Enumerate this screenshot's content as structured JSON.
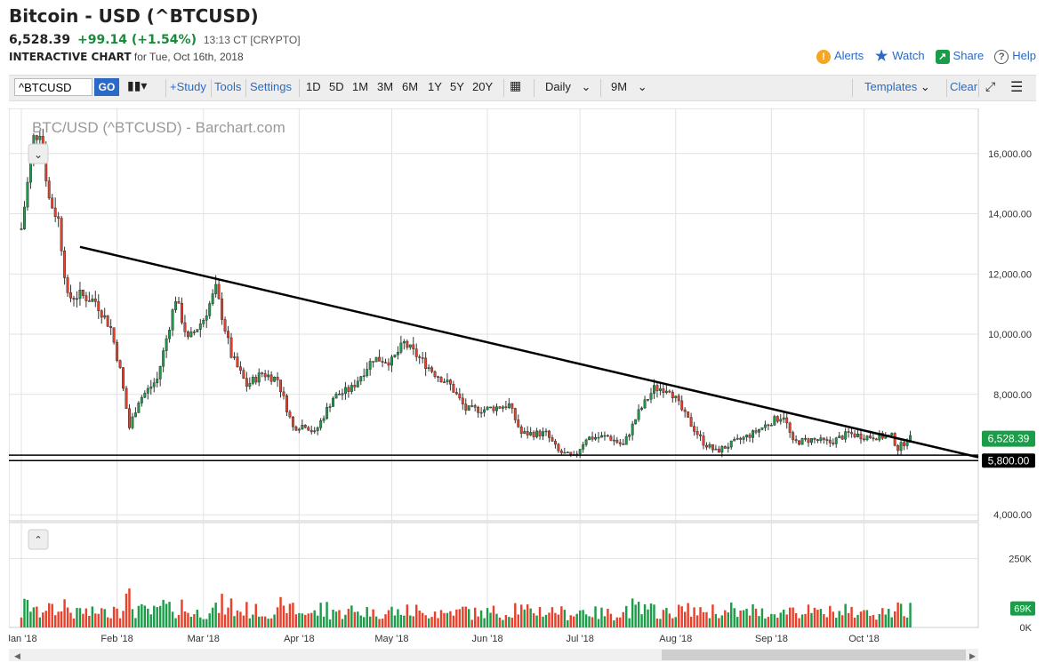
{
  "header": {
    "title": "Bitcoin - USD (^BTCUSD)",
    "price": "6,528.39",
    "change": "+99.14 (+1.54%)",
    "time": "13:13 CT [CRYPTO]",
    "interactive": "INTERACTIVE CHART",
    "for_date": "for Tue, Oct 16th, 2018"
  },
  "links": {
    "alerts": "Alerts",
    "watch": "Watch",
    "share": "Share",
    "help": "Help"
  },
  "toolbar": {
    "symbol": "^BTCUSD",
    "go": "GO",
    "study": "+Study",
    "tools": "Tools",
    "settings": "Settings",
    "ranges": [
      "1D",
      "5D",
      "1M",
      "3M",
      "6M",
      "1Y",
      "5Y",
      "20Y"
    ],
    "interval": "Daily",
    "period": "9M",
    "templates": "Templates",
    "clear": "Clear"
  },
  "colors": {
    "up": "#1a9c48",
    "down": "#e8402a",
    "accent": "#2a6ac6",
    "price_badge": "#1a9c48",
    "volume_badge": "#1a9c48"
  },
  "chart_data": {
    "type": "candlestick",
    "title": "BTC/USD (^BTCUSD) - Barchart.com",
    "months": [
      "Jan '18",
      "Feb '18",
      "Mar '18",
      "Apr '18",
      "May '18",
      "Jun '18",
      "Jul '18",
      "Aug '18",
      "Sep '18",
      "Oct '18"
    ],
    "price_ticks": [
      "16,000.00",
      "14,000.00",
      "12,000.00",
      "10,000.00",
      "8,000.00",
      "4,000.00"
    ],
    "price_tick_values": [
      16000,
      14000,
      12000,
      10000,
      8000,
      4000
    ],
    "ylim": [
      3800,
      17500
    ],
    "last_price": "6,528.39",
    "last_value": 6528.39,
    "support_label": "5,800.00",
    "support_value": 5800,
    "support2_value": 5980,
    "trendline": [
      {
        "date": "2018-01-20",
        "value": 12900
      },
      {
        "date": "2018-10-26",
        "value": 6200
      }
    ],
    "price_path": [
      {
        "date": "2018-01-01",
        "value": 13500
      },
      {
        "date": "2018-01-05",
        "value": 16500
      },
      {
        "date": "2018-01-07",
        "value": 16800
      },
      {
        "date": "2018-01-10",
        "value": 14500
      },
      {
        "date": "2018-01-13",
        "value": 13800
      },
      {
        "date": "2018-01-16",
        "value": 11200
      },
      {
        "date": "2018-01-20",
        "value": 11300
      },
      {
        "date": "2018-01-25",
        "value": 11100
      },
      {
        "date": "2018-01-30",
        "value": 10200
      },
      {
        "date": "2018-02-02",
        "value": 8800
      },
      {
        "date": "2018-02-05",
        "value": 6900
      },
      {
        "date": "2018-02-08",
        "value": 7800
      },
      {
        "date": "2018-02-14",
        "value": 8500
      },
      {
        "date": "2018-02-20",
        "value": 11200
      },
      {
        "date": "2018-02-24",
        "value": 9800
      },
      {
        "date": "2018-03-01",
        "value": 10500
      },
      {
        "date": "2018-03-05",
        "value": 11500
      },
      {
        "date": "2018-03-10",
        "value": 9300
      },
      {
        "date": "2018-03-15",
        "value": 8300
      },
      {
        "date": "2018-03-20",
        "value": 8700
      },
      {
        "date": "2018-03-25",
        "value": 8500
      },
      {
        "date": "2018-03-30",
        "value": 6900
      },
      {
        "date": "2018-04-03",
        "value": 7000
      },
      {
        "date": "2018-04-06",
        "value": 6700
      },
      {
        "date": "2018-04-12",
        "value": 7900
      },
      {
        "date": "2018-04-18",
        "value": 8200
      },
      {
        "date": "2018-04-25",
        "value": 9200
      },
      {
        "date": "2018-05-01",
        "value": 9100
      },
      {
        "date": "2018-05-05",
        "value": 9700
      },
      {
        "date": "2018-05-10",
        "value": 9200
      },
      {
        "date": "2018-05-15",
        "value": 8700
      },
      {
        "date": "2018-05-20",
        "value": 8300
      },
      {
        "date": "2018-05-25",
        "value": 7500
      },
      {
        "date": "2018-05-31",
        "value": 7500
      },
      {
        "date": "2018-06-08",
        "value": 7650
      },
      {
        "date": "2018-06-12",
        "value": 6700
      },
      {
        "date": "2018-06-20",
        "value": 6700
      },
      {
        "date": "2018-06-24",
        "value": 6100
      },
      {
        "date": "2018-06-29",
        "value": 5900
      },
      {
        "date": "2018-07-03",
        "value": 6550
      },
      {
        "date": "2018-07-10",
        "value": 6600
      },
      {
        "date": "2018-07-15",
        "value": 6300
      },
      {
        "date": "2018-07-20",
        "value": 7400
      },
      {
        "date": "2018-07-25",
        "value": 8200
      },
      {
        "date": "2018-07-30",
        "value": 8200
      },
      {
        "date": "2018-08-04",
        "value": 7300
      },
      {
        "date": "2018-08-10",
        "value": 6400
      },
      {
        "date": "2018-08-14",
        "value": 6100
      },
      {
        "date": "2018-08-20",
        "value": 6400
      },
      {
        "date": "2018-08-26",
        "value": 6700
      },
      {
        "date": "2018-09-01",
        "value": 7100
      },
      {
        "date": "2018-09-05",
        "value": 7300
      },
      {
        "date": "2018-09-08",
        "value": 6400
      },
      {
        "date": "2018-09-14",
        "value": 6500
      },
      {
        "date": "2018-09-20",
        "value": 6400
      },
      {
        "date": "2018-09-26",
        "value": 6700
      },
      {
        "date": "2018-10-01",
        "value": 6600
      },
      {
        "date": "2018-10-10",
        "value": 6600
      },
      {
        "date": "2018-10-12",
        "value": 6200
      },
      {
        "date": "2018-10-15",
        "value": 6500
      },
      {
        "date": "2018-10-16",
        "value": 6528
      }
    ],
    "volume_ticks": [
      "250K",
      "0K"
    ],
    "volume_tick_values": [
      250000,
      0
    ],
    "volume_label": "69K",
    "volume_value": 69000,
    "volume_ylim": [
      0,
      380000
    ]
  }
}
